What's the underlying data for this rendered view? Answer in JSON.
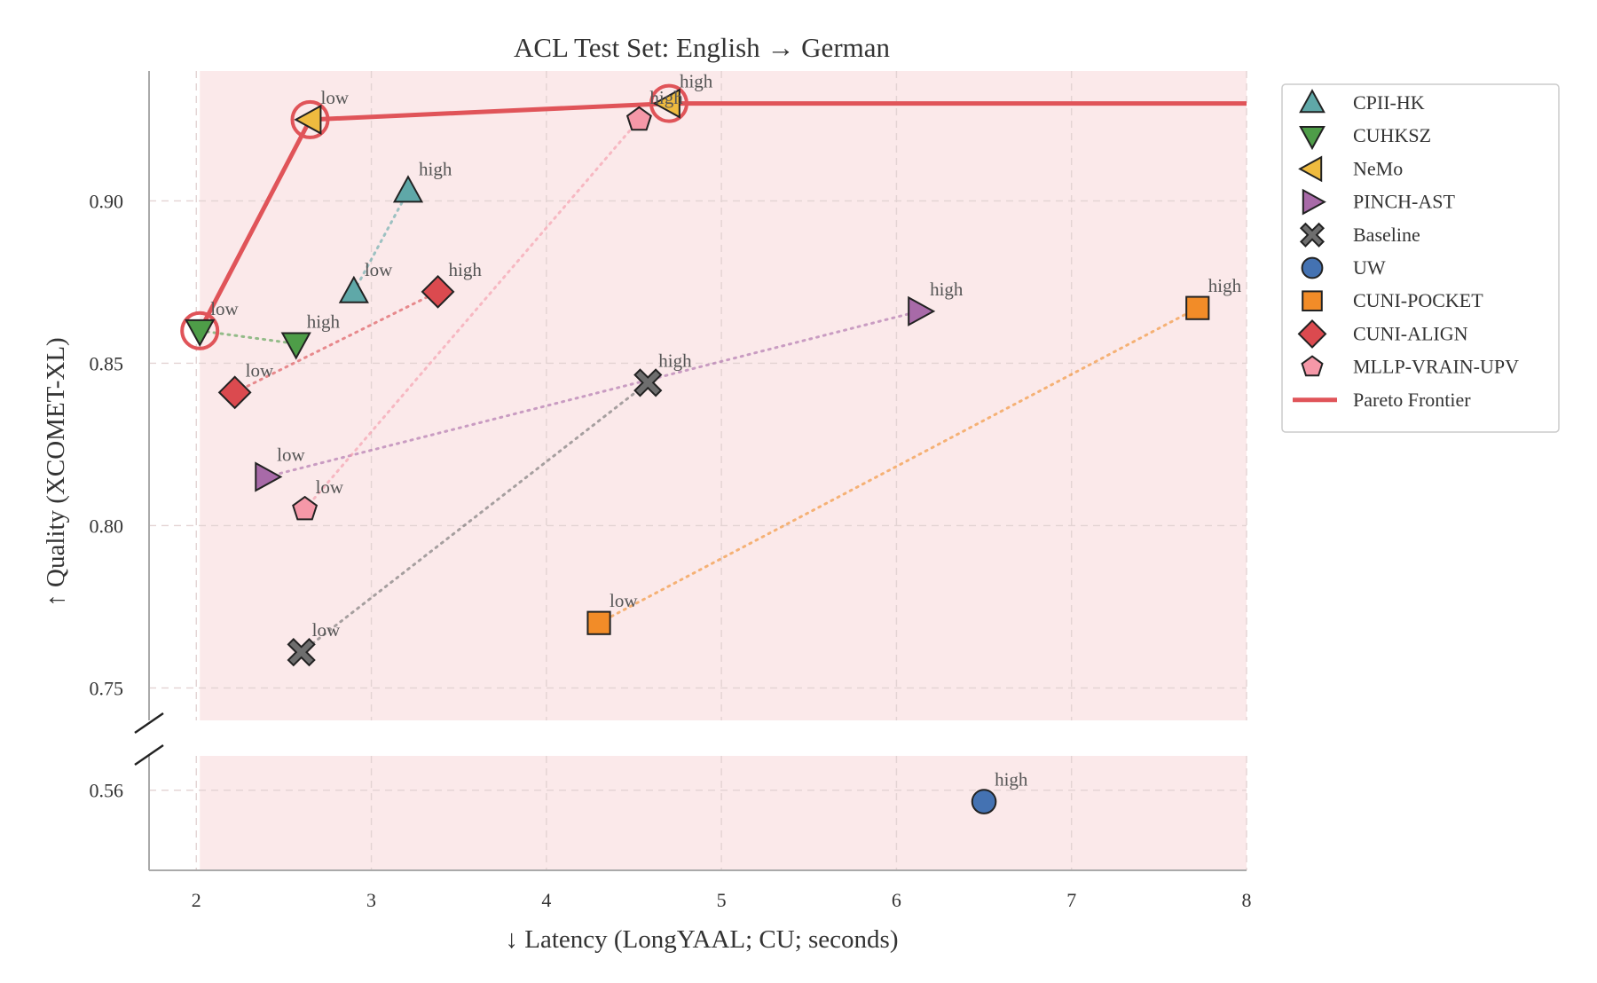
{
  "chart_data": {
    "type": "scatter",
    "title": "ACL Test Set: English → German",
    "xlabel": "↓ Latency (LongYAAL; CU; seconds)",
    "ylabel": "↑ Quality (XCOMET-XL)",
    "xlim": [
      1.73,
      8.0
    ],
    "ylim_upper": [
      0.74,
      0.94
    ],
    "ylim_lower": [
      0.525,
      0.575
    ],
    "xticks": [
      "2",
      "3",
      "4",
      "5",
      "6",
      "7",
      "8"
    ],
    "yticks_upper": [
      "0.75",
      "0.80",
      "0.85",
      "0.90"
    ],
    "yticks_lower": [
      "0.56"
    ],
    "grid": true,
    "broken_y_axis": true,
    "legend_position": "outside-right",
    "shaded_region_color": "#fbe9ea",
    "series": [
      {
        "name": "CPII-HK",
        "marker": "triangle-up",
        "color": "#5fa8a8",
        "points": [
          {
            "x": 2.9,
            "y": 0.872,
            "label": "low"
          },
          {
            "x": 3.21,
            "y": 0.903,
            "label": "high"
          }
        ]
      },
      {
        "name": "CUHKSZ",
        "marker": "triangle-down",
        "color": "#4e9d48",
        "points": [
          {
            "x": 2.02,
            "y": 0.86,
            "label": "low"
          },
          {
            "x": 2.57,
            "y": 0.856,
            "label": "high"
          }
        ]
      },
      {
        "name": "NeMo",
        "marker": "triangle-left",
        "color": "#efbb3f",
        "points": [
          {
            "x": 2.65,
            "y": 0.925,
            "label": "low"
          },
          {
            "x": 4.7,
            "y": 0.93,
            "label": "high"
          }
        ]
      },
      {
        "name": "PINCH-AST",
        "marker": "triangle-right",
        "color": "#a86aa8",
        "points": [
          {
            "x": 2.4,
            "y": 0.815,
            "label": "low"
          },
          {
            "x": 6.13,
            "y": 0.866,
            "label": "high"
          }
        ]
      },
      {
        "name": "Baseline",
        "marker": "x",
        "color": "#6e6e6e",
        "points": [
          {
            "x": 2.6,
            "y": 0.761,
            "label": "low"
          },
          {
            "x": 4.58,
            "y": 0.844,
            "label": "high"
          }
        ]
      },
      {
        "name": "UW",
        "marker": "circle",
        "color": "#4472b2",
        "points": [
          {
            "x": 6.5,
            "y": 0.555,
            "label": "high"
          }
        ]
      },
      {
        "name": "CUNI-POCKET",
        "marker": "square",
        "color": "#f28c28",
        "points": [
          {
            "x": 4.3,
            "y": 0.77,
            "label": "low"
          },
          {
            "x": 7.72,
            "y": 0.867,
            "label": "high"
          }
        ]
      },
      {
        "name": "CUNI-ALIGN",
        "marker": "diamond",
        "color": "#db4a4f",
        "points": [
          {
            "x": 2.22,
            "y": 0.841,
            "label": "low"
          },
          {
            "x": 3.38,
            "y": 0.872,
            "label": "high"
          }
        ]
      },
      {
        "name": "MLLP-VRAIN-UPV",
        "marker": "pentagon",
        "color": "#f598a8",
        "points": [
          {
            "x": 2.62,
            "y": 0.805,
            "label": "low"
          },
          {
            "x": 4.53,
            "y": 0.925,
            "label": "high"
          }
        ]
      }
    ],
    "pareto_frontier": {
      "name": "Pareto Frontier",
      "color": "#e05459",
      "points": [
        {
          "x": 2.02,
          "y": 0.86
        },
        {
          "x": 2.65,
          "y": 0.925
        },
        {
          "x": 4.7,
          "y": 0.93
        },
        {
          "x": 8.0,
          "y": 0.93
        }
      ]
    }
  }
}
